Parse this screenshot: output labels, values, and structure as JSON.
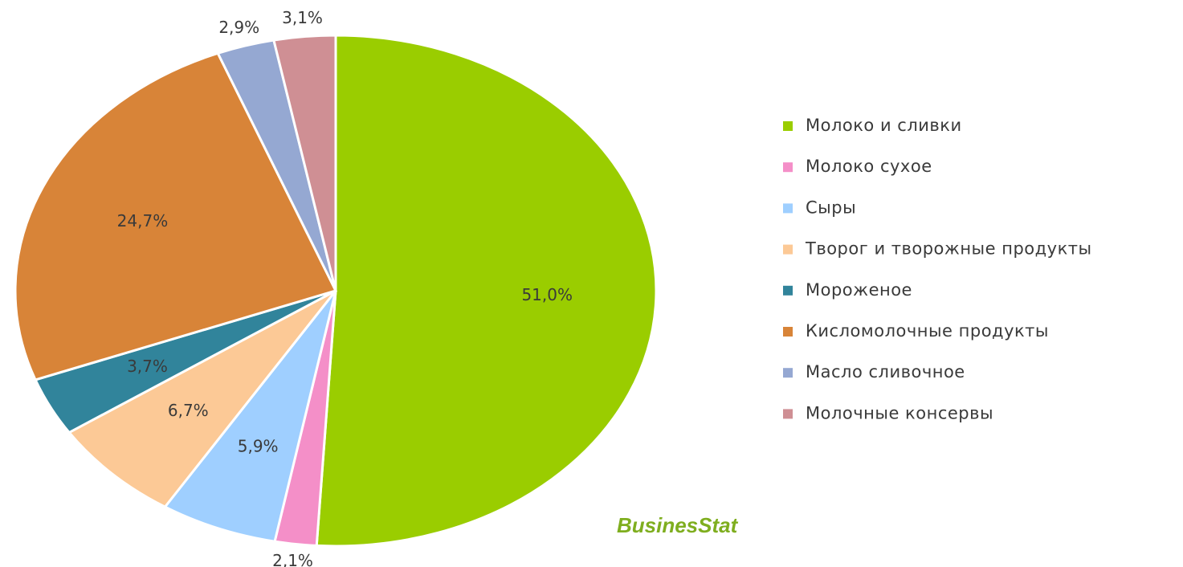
{
  "chart_data": {
    "type": "pie",
    "categories": [
      "Молоко и сливки",
      "Молоко сухое",
      "Сыры",
      "Творог и творожные продукты",
      "Мороженое",
      "Кисломолочные продукты",
      "Масло сливочное",
      "Молочные консервы"
    ],
    "values": [
      51.0,
      2.1,
      5.9,
      6.7,
      3.7,
      24.7,
      2.9,
      3.1
    ],
    "value_labels": [
      "51,0%",
      "2,1%",
      "5,9%",
      "6,7%",
      "3,7%",
      "24,7%",
      "2,9%",
      "3,1%"
    ],
    "colors": [
      "#9acd00",
      "#f48fc8",
      "#9fcfff",
      "#fcc996",
      "#31849b",
      "#d88438",
      "#95a8d2",
      "#cf8f94"
    ],
    "legend": "right",
    "logo": "BusinesStat"
  }
}
